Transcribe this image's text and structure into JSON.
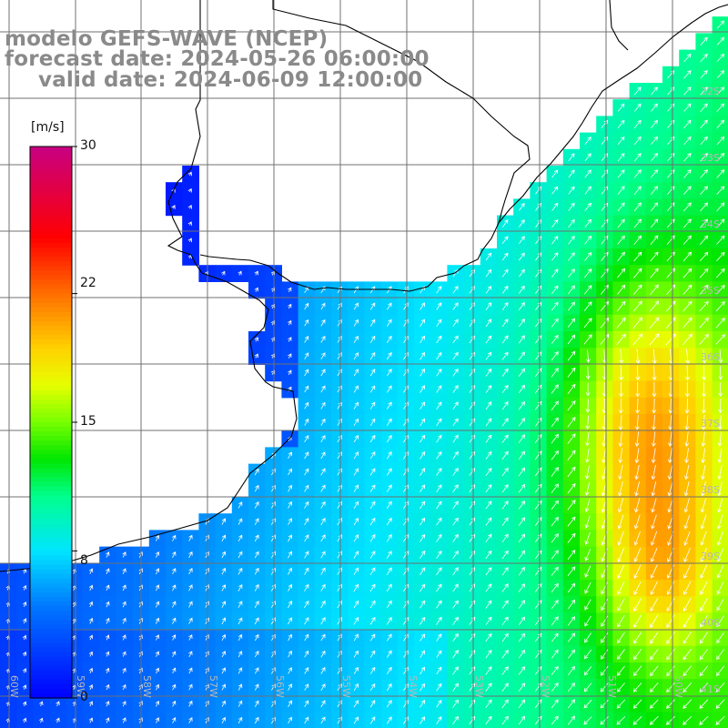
{
  "titles": {
    "line1": "modelo GEFS-WAVE (NCEP)",
    "line2": "forecast date: 2024-05-26 06:00:00",
    "line3": "valid date: 2024-06-09 12:00:00"
  },
  "colorbar": {
    "unit": "[m/s]",
    "ticks": [
      "30",
      "22",
      "15",
      "8",
      "0"
    ],
    "colors": [
      "#0000ff",
      "#00a0ff",
      "#00ffff",
      "#00ff80",
      "#00e000",
      "#80ff00",
      "#ffff00",
      "#ffa000",
      "#ff5000",
      "#ff0000",
      "#e00040",
      "#c00080"
    ]
  },
  "lat_labels": [
    "32S",
    "33S",
    "34S",
    "35S",
    "36S",
    "37S",
    "38S",
    "39S",
    "40S",
    "41S"
  ],
  "lon_labels": [
    "60W",
    "59W",
    "58W",
    "57W",
    "56W",
    "55W",
    "54W",
    "53W",
    "52W",
    "51W",
    "50W"
  ],
  "chart_data": {
    "type": "heatmap",
    "variable": "wind speed",
    "unit": "m/s",
    "range": [
      0,
      30
    ],
    "lat_range": [
      "41S",
      "31S"
    ],
    "lon_range": [
      "61W",
      "50W"
    ],
    "grid": true,
    "arrows": true
  }
}
